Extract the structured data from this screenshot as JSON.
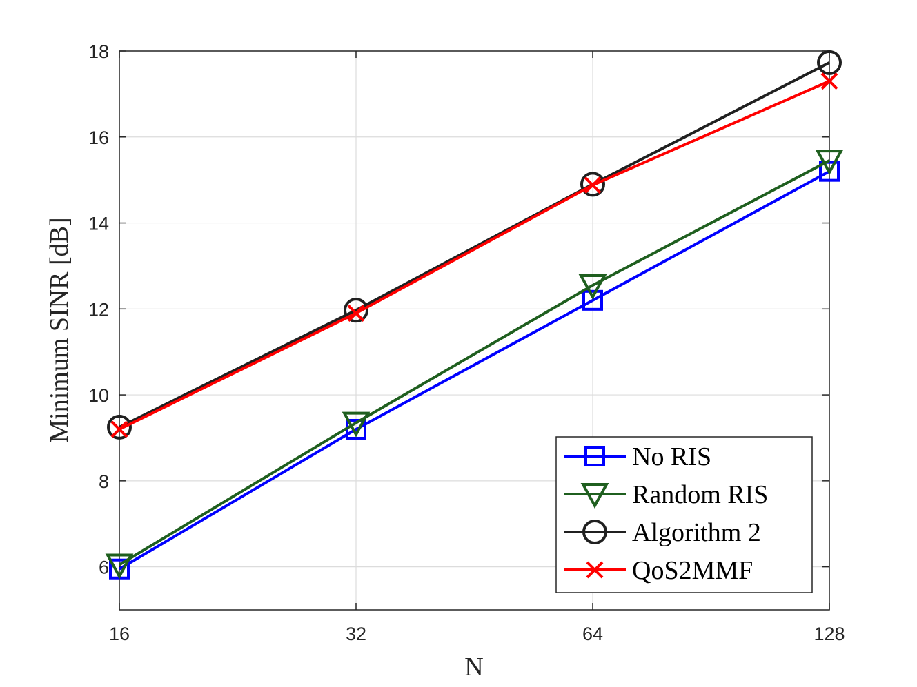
{
  "chart_data": {
    "type": "line",
    "xlabel": "N",
    "ylabel": "Minimum SINR [dB]",
    "x": [
      16,
      32,
      64,
      128
    ],
    "x_scale": "log2",
    "xlim": [
      16,
      128
    ],
    "ylim": [
      5,
      18
    ],
    "xticks": [
      16,
      32,
      64,
      128
    ],
    "yticks": [
      6,
      8,
      10,
      12,
      14,
      16,
      18
    ],
    "grid": true,
    "legend_position": "bottom-right",
    "series": [
      {
        "name": "No RIS",
        "color": "#0000ff",
        "marker": "square",
        "values": [
          5.95,
          9.2,
          12.2,
          15.2
        ]
      },
      {
        "name": "Random RIS",
        "color": "#1f5f1f",
        "marker": "triangle-down",
        "values": [
          6.05,
          9.35,
          12.55,
          15.45
        ]
      },
      {
        "name": "Algorithm 2",
        "color": "#202020",
        "marker": "circle",
        "values": [
          9.25,
          11.97,
          14.9,
          17.73
        ]
      },
      {
        "name": "QoS2MMF",
        "color": "#ff0000",
        "marker": "x",
        "values": [
          9.2,
          11.9,
          14.88,
          17.3
        ]
      }
    ]
  }
}
